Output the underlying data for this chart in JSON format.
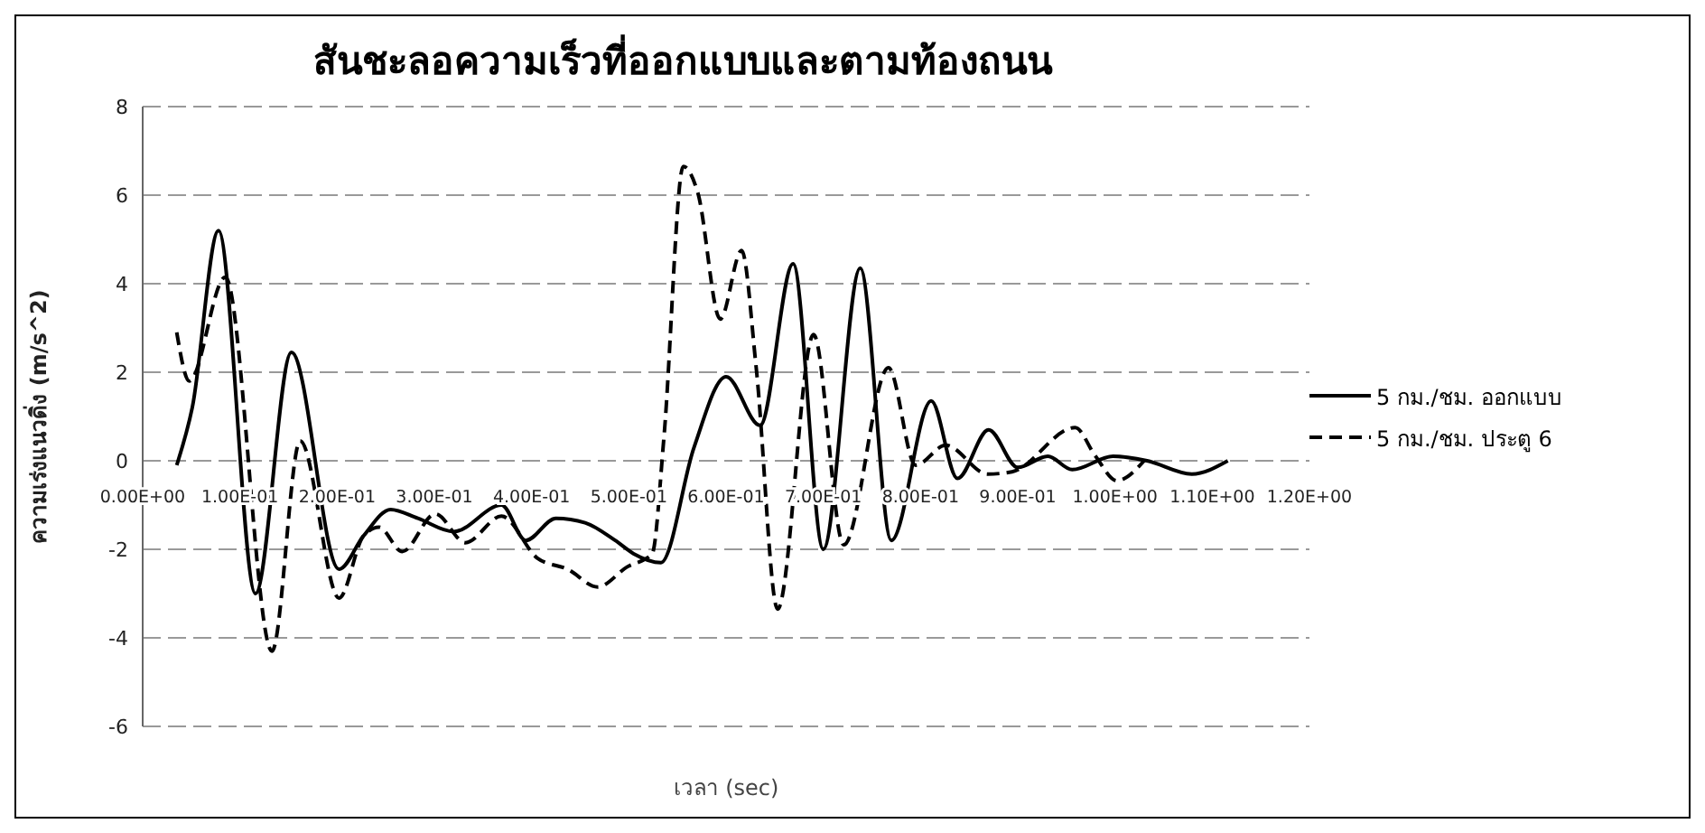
{
  "chart_data": {
    "type": "line",
    "title": "สันชะลอความเร็วที่ออกแบบและตามท้องถนน",
    "xlabel": "เวลา (sec)",
    "ylabel": "ความเร่งแนวดิ่ง (m/s^2)",
    "xlim": [
      0,
      1.2
    ],
    "xticks": [
      {
        "value": 0,
        "label": "0.00E+00"
      },
      {
        "value": 0.1,
        "label": "1.00E-01"
      },
      {
        "value": 0.2,
        "label": "2.00E-01"
      },
      {
        "value": 0.3,
        "label": "3.00E-01"
      },
      {
        "value": 0.4,
        "label": "4.00E-01"
      },
      {
        "value": 0.5,
        "label": "5.00E-01"
      },
      {
        "value": 0.6,
        "label": "6.00E-01"
      },
      {
        "value": 0.7,
        "label": "7.00E-01"
      },
      {
        "value": 0.8,
        "label": "8.00E-01"
      },
      {
        "value": 0.9,
        "label": "9.00E-01"
      },
      {
        "value": 1.0,
        "label": "1.00E+00"
      },
      {
        "value": 1.1,
        "label": "1.10E+00"
      },
      {
        "value": 1.2,
        "label": "1.20E+00"
      }
    ],
    "ylim": [
      -6,
      8
    ],
    "yticks": [
      -6,
      -4,
      -2,
      0,
      2,
      4,
      6,
      8
    ],
    "grid": "y",
    "legend": "right",
    "marker": "none",
    "series": [
      {
        "name": "5 กม./ชม. ออกแบบ",
        "color": "#000000",
        "line_style": "solid",
        "x": [
          0.035,
          0.051,
          0.078,
          0.116,
          0.153,
          0.202,
          0.227,
          0.255,
          0.283,
          0.32,
          0.369,
          0.394,
          0.425,
          0.455,
          0.486,
          0.505,
          0.533,
          0.567,
          0.6,
          0.635,
          0.669,
          0.7,
          0.738,
          0.77,
          0.811,
          0.838,
          0.87,
          0.9,
          0.931,
          0.956,
          0.998,
          1.033,
          1.079,
          1.116
        ],
        "values": [
          -0.1,
          1.2,
          5.2,
          -3.0,
          2.45,
          -2.45,
          -1.7,
          -1.1,
          -1.3,
          -1.6,
          -1.0,
          -1.8,
          -1.3,
          -1.4,
          -1.8,
          -2.1,
          -2.3,
          0.3,
          1.9,
          0.8,
          4.45,
          -2.0,
          4.35,
          -1.8,
          1.35,
          -0.4,
          0.7,
          -0.15,
          0.1,
          -0.2,
          0.1,
          0.0,
          -0.3,
          0.0
        ]
      },
      {
        "name": "5 กม./ชม. ประตู 6",
        "color": "#000000",
        "line_style": "dashed",
        "x": [
          0.035,
          0.048,
          0.085,
          0.133,
          0.162,
          0.202,
          0.227,
          0.243,
          0.267,
          0.301,
          0.332,
          0.369,
          0.406,
          0.437,
          0.468,
          0.498,
          0.524,
          0.536,
          0.556,
          0.571,
          0.594,
          0.616,
          0.631,
          0.653,
          0.69,
          0.721,
          0.767,
          0.795,
          0.826,
          0.869,
          0.894,
          0.959,
          0.98,
          1.002,
          1.03
        ],
        "values": [
          2.9,
          1.8,
          4.15,
          -4.3,
          0.45,
          -3.1,
          -1.7,
          -1.5,
          -2.05,
          -1.2,
          -1.85,
          -1.25,
          -2.2,
          -2.45,
          -2.85,
          -2.4,
          -2.1,
          0.5,
          6.65,
          6.05,
          3.2,
          4.75,
          2.1,
          -3.35,
          2.85,
          -1.9,
          2.1,
          -0.1,
          0.35,
          -0.3,
          -0.25,
          0.75,
          0.1,
          -0.45,
          0.0
        ]
      }
    ]
  }
}
